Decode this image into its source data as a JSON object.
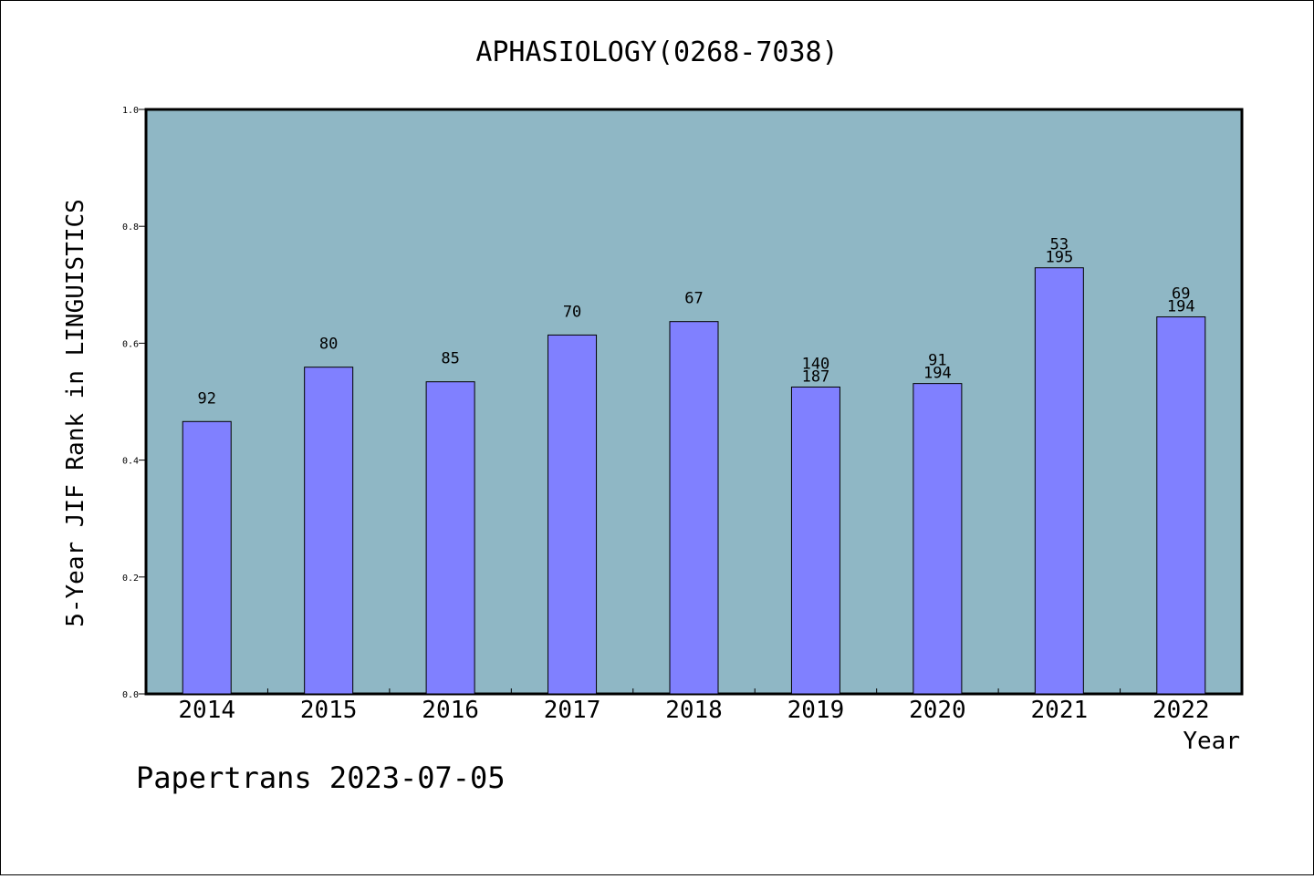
{
  "chart_data": {
    "type": "bar",
    "title": "APHASIOLOGY(0268-7038)",
    "xlabel": "Year",
    "ylabel": "5-Year JIF Rank in LINGUISTICS",
    "ylim": [
      0,
      1
    ],
    "yticks": [
      "0.0",
      "0.2",
      "0.4",
      "0.6",
      "0.8",
      "1.0"
    ],
    "categories": [
      "2014",
      "2015",
      "2016",
      "2017",
      "2018",
      "2019",
      "2020",
      "2021",
      "2022"
    ],
    "values": [
      0.466,
      0.559,
      0.534,
      0.614,
      0.637,
      0.525,
      0.531,
      0.729,
      0.645
    ],
    "labels": [
      [
        "92"
      ],
      [
        "80"
      ],
      [
        "85"
      ],
      [
        "70"
      ],
      [
        "67"
      ],
      [
        "140",
        "187"
      ],
      [
        "91",
        "194"
      ],
      [
        "53",
        "195"
      ],
      [
        "69",
        "194"
      ]
    ],
    "grid": false,
    "colors": {
      "plot_background": "#8fb7c5",
      "bar": "#8080ff"
    }
  },
  "footer": {
    "text": "Papertrans 2023-07-05"
  }
}
